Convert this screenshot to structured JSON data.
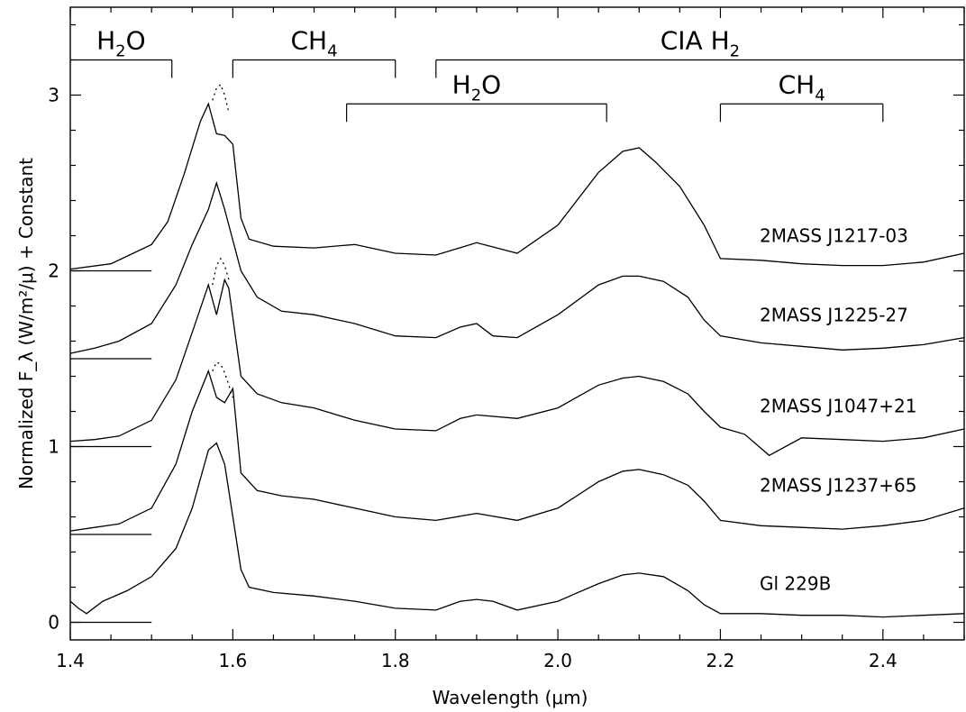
{
  "chart_data": {
    "type": "line",
    "xlabel": "Wavelength (μm)",
    "ylabel": "Normalized F_λ (W/m²/μ) + Constant",
    "xlim": [
      1.4,
      2.5
    ],
    "ylim": [
      -0.1,
      3.5
    ],
    "x_ticks": [
      "1.4",
      "1.6",
      "1.8",
      "2.0",
      "2.2",
      "2.4"
    ],
    "y_ticks": [
      "0",
      "1",
      "2",
      "3"
    ],
    "band_labels": [
      {
        "id": "h2o-1",
        "label": "H2O",
        "x_start": 1.4,
        "x_end": 1.525,
        "y": 3.2
      },
      {
        "id": "ch4-1",
        "label": "CH4",
        "x_start": 1.6,
        "x_end": 1.8,
        "y": 3.2
      },
      {
        "id": "cia-h2",
        "label": "CIA H2",
        "x_start": 1.85,
        "x_end": 2.5,
        "y": 3.2
      },
      {
        "id": "h2o-2",
        "label": "H2O",
        "x_start": 1.74,
        "x_end": 2.06,
        "y": 2.95
      },
      {
        "id": "ch4-2",
        "label": "CH4",
        "x_start": 2.2,
        "x_end": 2.4,
        "y": 2.95
      }
    ],
    "series": [
      {
        "name": "2MASS J1217-03",
        "zero_level": 2.0,
        "x": [
          1.4,
          1.45,
          1.5,
          1.52,
          1.54,
          1.56,
          1.57,
          1.58,
          1.59,
          1.6,
          1.61,
          1.62,
          1.65,
          1.7,
          1.75,
          1.8,
          1.85,
          1.9,
          1.95,
          2.0,
          2.05,
          2.08,
          2.1,
          2.12,
          2.15,
          2.18,
          2.2,
          2.25,
          2.3,
          2.35,
          2.4,
          2.45,
          2.5
        ],
        "y": [
          2.01,
          2.04,
          2.15,
          2.28,
          2.55,
          2.85,
          2.95,
          2.78,
          2.77,
          2.72,
          2.3,
          2.18,
          2.14,
          2.13,
          2.15,
          2.1,
          2.09,
          2.16,
          2.1,
          2.26,
          2.56,
          2.68,
          2.7,
          2.62,
          2.48,
          2.26,
          2.07,
          2.06,
          2.04,
          2.03,
          2.03,
          2.05,
          2.1
        ],
        "dotted_peak": {
          "x": [
            1.575,
            1.58,
            1.585,
            1.59,
            1.595
          ],
          "y": [
            2.97,
            3.04,
            3.06,
            3.0,
            2.9
          ]
        }
      },
      {
        "name": "2MASS J1225-27",
        "zero_level": 1.5,
        "x": [
          1.4,
          1.43,
          1.46,
          1.5,
          1.53,
          1.55,
          1.57,
          1.58,
          1.59,
          1.61,
          1.63,
          1.66,
          1.7,
          1.75,
          1.8,
          1.85,
          1.88,
          1.9,
          1.92,
          1.95,
          2.0,
          2.05,
          2.08,
          2.1,
          2.13,
          2.16,
          2.18,
          2.2,
          2.25,
          2.3,
          2.35,
          2.4,
          2.45,
          2.5
        ],
        "y": [
          1.53,
          1.56,
          1.6,
          1.7,
          1.92,
          2.15,
          2.35,
          2.5,
          2.35,
          2.0,
          1.85,
          1.77,
          1.75,
          1.7,
          1.63,
          1.62,
          1.68,
          1.7,
          1.63,
          1.62,
          1.75,
          1.92,
          1.97,
          1.97,
          1.94,
          1.85,
          1.72,
          1.63,
          1.59,
          1.57,
          1.55,
          1.56,
          1.58,
          1.62
        ]
      },
      {
        "name": "2MASS J1047+21",
        "zero_level": 1.0,
        "x": [
          1.4,
          1.43,
          1.46,
          1.5,
          1.53,
          1.55,
          1.57,
          1.58,
          1.59,
          1.595,
          1.61,
          1.63,
          1.66,
          1.7,
          1.75,
          1.8,
          1.85,
          1.88,
          1.9,
          1.95,
          2.0,
          2.05,
          2.08,
          2.1,
          2.13,
          2.16,
          2.18,
          2.2,
          2.23,
          2.26,
          2.3,
          2.35,
          2.4,
          2.45,
          2.5
        ],
        "y": [
          1.03,
          1.04,
          1.06,
          1.15,
          1.38,
          1.65,
          1.92,
          1.75,
          1.95,
          1.9,
          1.4,
          1.3,
          1.25,
          1.22,
          1.15,
          1.1,
          1.09,
          1.16,
          1.18,
          1.16,
          1.22,
          1.35,
          1.39,
          1.4,
          1.37,
          1.3,
          1.2,
          1.11,
          1.07,
          0.95,
          1.05,
          1.04,
          1.03,
          1.05,
          1.1
        ],
        "dotted_peak": {
          "x": [
            1.575,
            1.58,
            1.585,
            1.59,
            1.595
          ],
          "y": [
            1.92,
            2.03,
            2.07,
            2.03,
            1.95
          ]
        }
      },
      {
        "name": "2MASS J1237+65",
        "zero_level": 0.5,
        "x": [
          1.4,
          1.43,
          1.46,
          1.5,
          1.53,
          1.55,
          1.57,
          1.58,
          1.59,
          1.6,
          1.61,
          1.63,
          1.66,
          1.7,
          1.75,
          1.8,
          1.85,
          1.9,
          1.95,
          2.0,
          2.05,
          2.08,
          2.1,
          2.13,
          2.16,
          2.18,
          2.2,
          2.25,
          2.3,
          2.35,
          2.4,
          2.45,
          2.5
        ],
        "y": [
          0.52,
          0.54,
          0.56,
          0.65,
          0.9,
          1.2,
          1.43,
          1.28,
          1.25,
          1.33,
          0.85,
          0.75,
          0.72,
          0.7,
          0.65,
          0.6,
          0.58,
          0.62,
          0.58,
          0.65,
          0.8,
          0.86,
          0.87,
          0.84,
          0.78,
          0.69,
          0.58,
          0.55,
          0.54,
          0.53,
          0.55,
          0.58,
          0.65
        ],
        "dotted_peak": {
          "x": [
            1.575,
            1.58,
            1.585,
            1.59,
            1.595,
            1.6
          ],
          "y": [
            1.43,
            1.48,
            1.47,
            1.42,
            1.35,
            1.28
          ]
        }
      },
      {
        "name": "Gl 229B",
        "zero_level": 0.0,
        "x": [
          1.4,
          1.41,
          1.42,
          1.44,
          1.47,
          1.5,
          1.53,
          1.55,
          1.57,
          1.58,
          1.59,
          1.6,
          1.61,
          1.62,
          1.65,
          1.7,
          1.75,
          1.8,
          1.85,
          1.88,
          1.9,
          1.92,
          1.95,
          2.0,
          2.05,
          2.08,
          2.1,
          2.13,
          2.16,
          2.18,
          2.2,
          2.25,
          2.3,
          2.35,
          2.4,
          2.45,
          2.5
        ],
        "y": [
          0.12,
          0.08,
          0.05,
          0.12,
          0.18,
          0.26,
          0.42,
          0.65,
          0.98,
          1.02,
          0.9,
          0.6,
          0.3,
          0.2,
          0.17,
          0.15,
          0.12,
          0.08,
          0.07,
          0.12,
          0.13,
          0.12,
          0.07,
          0.12,
          0.22,
          0.27,
          0.28,
          0.26,
          0.18,
          0.1,
          0.05,
          0.05,
          0.04,
          0.04,
          0.03,
          0.04,
          0.05
        ]
      }
    ]
  }
}
